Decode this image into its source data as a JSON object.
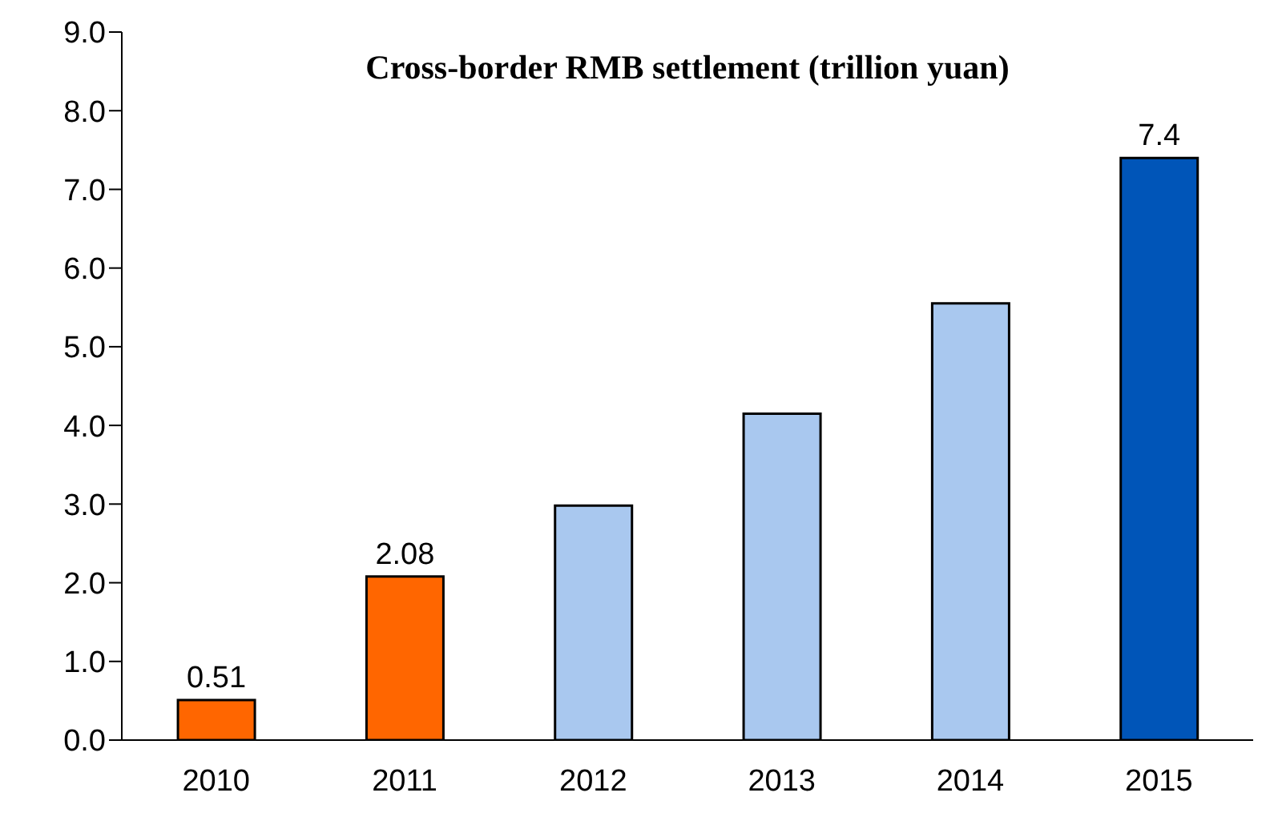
{
  "chart_data": {
    "type": "bar",
    "title": "Cross-border RMB settlement (trillion yuan)",
    "categories": [
      "2010",
      "2011",
      "2012",
      "2013",
      "2014",
      "2015"
    ],
    "values": [
      0.51,
      2.08,
      2.98,
      4.15,
      5.55,
      7.4
    ],
    "colors": [
      "#ff6600",
      "#ff6600",
      "#a9c8ef",
      "#a9c8ef",
      "#a9c8ef",
      "#0055b8"
    ],
    "value_labels": [
      "0.51",
      "2.08",
      null,
      null,
      null,
      "7.4"
    ],
    "ylim": [
      0,
      9
    ],
    "yticks": [
      {
        "value": 0,
        "label": "0.0"
      },
      {
        "value": 1,
        "label": "1.0"
      },
      {
        "value": 2,
        "label": "2.0"
      },
      {
        "value": 3,
        "label": "3.0"
      },
      {
        "value": 4,
        "label": "4.0"
      },
      {
        "value": 5,
        "label": "5.0"
      },
      {
        "value": 6,
        "label": "6.0"
      },
      {
        "value": 7,
        "label": "7.0"
      },
      {
        "value": 8,
        "label": "8.0"
      },
      {
        "value": 9,
        "label": "9.0"
      }
    ],
    "grid": false,
    "legend": false
  }
}
